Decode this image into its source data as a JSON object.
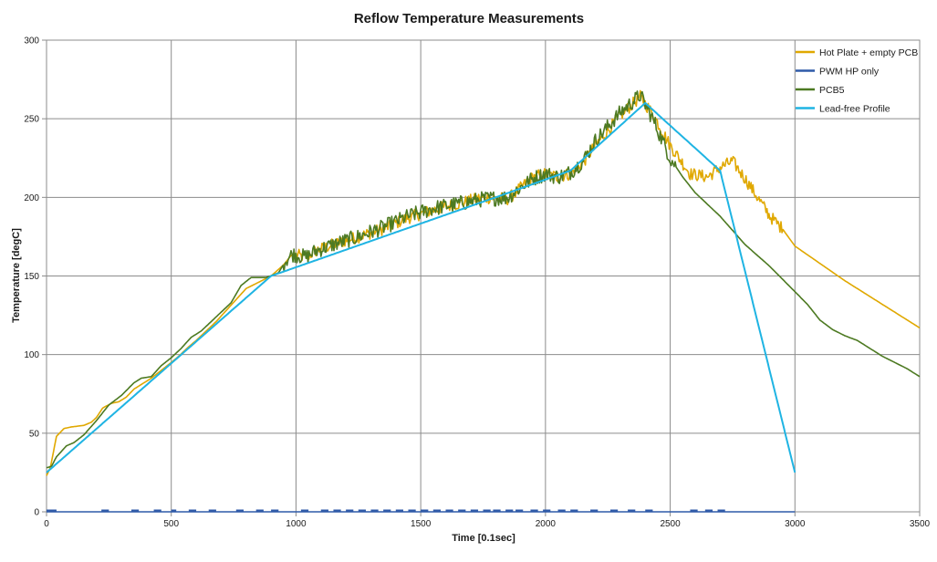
{
  "chart_data": {
    "type": "line",
    "title": "Reflow Temperature Measurements",
    "xlabel": "Time [0.1sec]",
    "ylabel": "Temperature [degC]",
    "xlim": [
      0,
      3500
    ],
    "ylim": [
      0,
      300
    ],
    "x_ticks": [
      0,
      500,
      1000,
      1500,
      2000,
      2500,
      3000,
      3500
    ],
    "y_ticks": [
      0,
      50,
      100,
      150,
      200,
      250,
      300
    ],
    "grid": true,
    "legend_position": "top-right",
    "series": [
      {
        "name": "Hot Plate + empty PCB",
        "color": "#e0a800",
        "noise_start": 1000,
        "noise_end": 2950,
        "noise_amplitude": 4,
        "points": [
          [
            0,
            23
          ],
          [
            15,
            28
          ],
          [
            40,
            48
          ],
          [
            70,
            53
          ],
          [
            100,
            54
          ],
          [
            150,
            55
          ],
          [
            180,
            57
          ],
          [
            200,
            60
          ],
          [
            225,
            66
          ],
          [
            260,
            69
          ],
          [
            290,
            70
          ],
          [
            320,
            73
          ],
          [
            350,
            78
          ],
          [
            390,
            82
          ],
          [
            420,
            85
          ],
          [
            460,
            90
          ],
          [
            500,
            95
          ],
          [
            530,
            99
          ],
          [
            570,
            105
          ],
          [
            600,
            109
          ],
          [
            640,
            115
          ],
          [
            680,
            121
          ],
          [
            720,
            128
          ],
          [
            760,
            135
          ],
          [
            800,
            142
          ],
          [
            850,
            146
          ],
          [
            900,
            150
          ],
          [
            950,
            157
          ],
          [
            985,
            164
          ],
          [
            1010,
            163
          ],
          [
            1040,
            162
          ],
          [
            1080,
            166
          ],
          [
            1150,
            170
          ],
          [
            1250,
            175
          ],
          [
            1350,
            180
          ],
          [
            1450,
            187
          ],
          [
            1550,
            192
          ],
          [
            1650,
            196
          ],
          [
            1750,
            200
          ],
          [
            1850,
            199
          ],
          [
            1880,
            203
          ],
          [
            1950,
            213
          ],
          [
            2000,
            215
          ],
          [
            2050,
            213
          ],
          [
            2100,
            215
          ],
          [
            2150,
            222
          ],
          [
            2200,
            233
          ],
          [
            2300,
            252
          ],
          [
            2380,
            264
          ],
          [
            2430,
            253
          ],
          [
            2500,
            233
          ],
          [
            2580,
            215
          ],
          [
            2650,
            213
          ],
          [
            2700,
            219
          ],
          [
            2750,
            223
          ],
          [
            2800,
            212
          ],
          [
            2900,
            188
          ],
          [
            2950,
            180
          ],
          [
            3000,
            169
          ],
          [
            3100,
            158
          ],
          [
            3200,
            147
          ],
          [
            3300,
            137
          ],
          [
            3400,
            127
          ],
          [
            3500,
            117
          ]
        ]
      },
      {
        "name": "PWM HP only",
        "color": "#2f5aa8",
        "pulses": [
          [
            0,
            40
          ],
          [
            220,
            250
          ],
          [
            340,
            370
          ],
          [
            430,
            460
          ],
          [
            500,
            520
          ],
          [
            570,
            600
          ],
          [
            650,
            680
          ],
          [
            760,
            790
          ],
          [
            840,
            870
          ],
          [
            900,
            930
          ],
          [
            1020,
            1050
          ],
          [
            1100,
            1130
          ],
          [
            1150,
            1180
          ],
          [
            1200,
            1230
          ],
          [
            1250,
            1280
          ],
          [
            1300,
            1330
          ],
          [
            1350,
            1380
          ],
          [
            1400,
            1430
          ],
          [
            1450,
            1480
          ],
          [
            1500,
            1530
          ],
          [
            1550,
            1580
          ],
          [
            1600,
            1630
          ],
          [
            1650,
            1680
          ],
          [
            1700,
            1730
          ],
          [
            1750,
            1780
          ],
          [
            1790,
            1820
          ],
          [
            1840,
            1870
          ],
          [
            1880,
            1910
          ],
          [
            1940,
            1970
          ],
          [
            1990,
            2020
          ],
          [
            2050,
            2080
          ],
          [
            2100,
            2130
          ],
          [
            2180,
            2210
          ],
          [
            2260,
            2290
          ],
          [
            2330,
            2360
          ],
          [
            2400,
            2430
          ],
          [
            2580,
            2610
          ],
          [
            2640,
            2670
          ],
          [
            2690,
            2720
          ]
        ]
      },
      {
        "name": "PCB5",
        "color": "#4d7a22",
        "noise_start": 950,
        "noise_end": 2520,
        "noise_amplitude": 5,
        "points": [
          [
            0,
            28
          ],
          [
            20,
            29
          ],
          [
            40,
            35
          ],
          [
            80,
            42
          ],
          [
            110,
            44
          ],
          [
            150,
            49
          ],
          [
            200,
            58
          ],
          [
            250,
            68
          ],
          [
            300,
            74
          ],
          [
            350,
            82
          ],
          [
            380,
            85
          ],
          [
            420,
            86
          ],
          [
            460,
            93
          ],
          [
            500,
            98
          ],
          [
            540,
            104
          ],
          [
            580,
            111
          ],
          [
            620,
            115
          ],
          [
            660,
            121
          ],
          [
            700,
            127
          ],
          [
            740,
            133
          ],
          [
            780,
            144
          ],
          [
            820,
            149
          ],
          [
            880,
            149
          ],
          [
            930,
            152
          ],
          [
            960,
            160
          ],
          [
            985,
            164
          ],
          [
            1010,
            163
          ],
          [
            1040,
            162
          ],
          [
            1080,
            166
          ],
          [
            1150,
            170
          ],
          [
            1250,
            175
          ],
          [
            1350,
            181
          ],
          [
            1450,
            188
          ],
          [
            1550,
            193
          ],
          [
            1650,
            196
          ],
          [
            1750,
            199
          ],
          [
            1850,
            200
          ],
          [
            1880,
            204
          ],
          [
            1950,
            212
          ],
          [
            2000,
            215
          ],
          [
            2050,
            213
          ],
          [
            2100,
            216
          ],
          [
            2150,
            223
          ],
          [
            2200,
            236
          ],
          [
            2300,
            254
          ],
          [
            2380,
            265
          ],
          [
            2430,
            250
          ],
          [
            2500,
            225
          ],
          [
            2550,
            213
          ],
          [
            2600,
            203
          ],
          [
            2700,
            188
          ],
          [
            2800,
            170
          ],
          [
            2900,
            156
          ],
          [
            3000,
            140
          ],
          [
            3050,
            132
          ],
          [
            3100,
            122
          ],
          [
            3150,
            116
          ],
          [
            3200,
            112
          ],
          [
            3250,
            109
          ],
          [
            3300,
            104
          ],
          [
            3350,
            99
          ],
          [
            3400,
            95
          ],
          [
            3450,
            91
          ],
          [
            3500,
            86
          ]
        ]
      },
      {
        "name": "Lead-free Profile",
        "color": "#1fb4e3",
        "points": [
          [
            0,
            25
          ],
          [
            900,
            150
          ],
          [
            1800,
            200
          ],
          [
            2100,
            217
          ],
          [
            2400,
            260
          ],
          [
            2700,
            217
          ],
          [
            3000,
            25
          ]
        ]
      }
    ]
  }
}
